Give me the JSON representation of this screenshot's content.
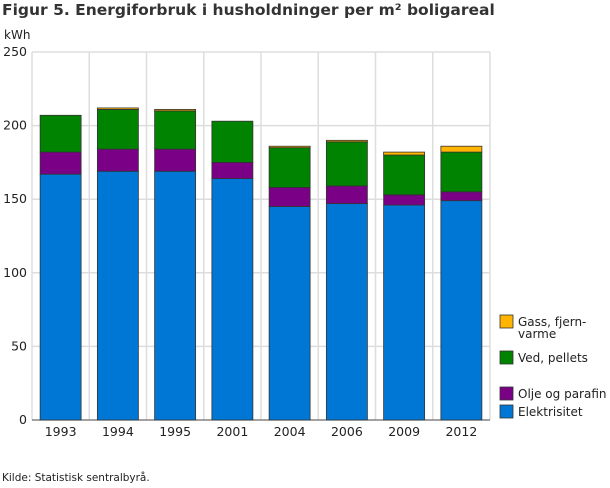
{
  "chart_data": {
    "type": "bar",
    "stacked": true,
    "title": "Figur 5. Energiforbruk i husholdninger per m² boligareal",
    "ylabel": "kWh",
    "ylim": [
      0,
      250
    ],
    "yticks": [
      0,
      50,
      100,
      150,
      200,
      250
    ],
    "grid": true,
    "legend_position": "right",
    "categories": [
      "1993",
      "1994",
      "1995",
      "2001",
      "2004",
      "2006",
      "2009",
      "2012"
    ],
    "series": [
      {
        "name": "Elektrisitet",
        "color": "#0077d4",
        "values": [
          167,
          169,
          169,
          164,
          145,
          147,
          146,
          149
        ]
      },
      {
        "name": "Olje og parafin",
        "color": "#7a0085",
        "values": [
          15,
          15,
          15,
          11,
          13,
          12,
          7,
          6
        ]
      },
      {
        "name": "Ved, pellets",
        "color": "#008300",
        "values": [
          25,
          27,
          26,
          28,
          27,
          30,
          27,
          27
        ]
      },
      {
        "name": "Gass, fjern-\nvarme",
        "color": "#ffb400",
        "values": [
          0,
          1,
          1,
          0,
          1,
          1,
          2,
          4
        ]
      }
    ],
    "source": "Kilde: Statistisk sentralbyrå."
  }
}
